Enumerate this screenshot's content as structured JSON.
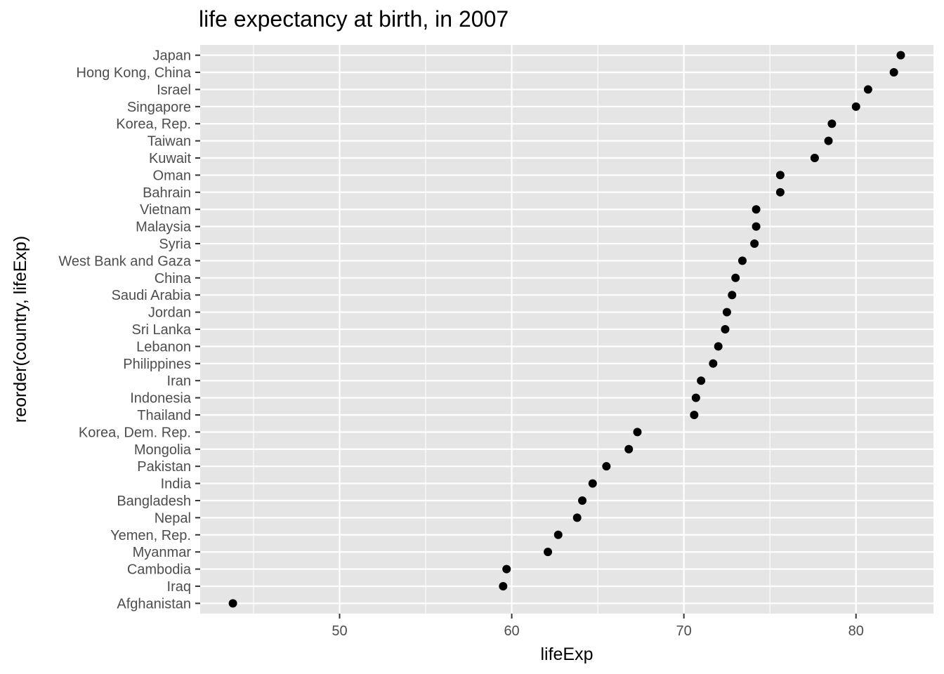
{
  "chart_data": {
    "type": "scatter",
    "title": "life expectancy at birth, in 2007",
    "xlabel": "lifeExp",
    "ylabel": "reorder(country, lifeExp)",
    "xlim": [
      41.9,
      84.5
    ],
    "xticks": [
      50,
      60,
      70,
      80
    ],
    "grid": true,
    "legend": "none",
    "point_color": "#000000",
    "panel_background": "#e5e5e5",
    "categories": [
      "Japan",
      "Hong Kong, China",
      "Israel",
      "Singapore",
      "Korea, Rep.",
      "Taiwan",
      "Kuwait",
      "Oman",
      "Bahrain",
      "Vietnam",
      "Malaysia",
      "Syria",
      "West Bank and Gaza",
      "China",
      "Saudi Arabia",
      "Jordan",
      "Sri Lanka",
      "Lebanon",
      "Philippines",
      "Iran",
      "Indonesia",
      "Thailand",
      "Korea, Dem. Rep.",
      "Mongolia",
      "Pakistan",
      "India",
      "Bangladesh",
      "Nepal",
      "Yemen, Rep.",
      "Myanmar",
      "Cambodia",
      "Iraq",
      "Afghanistan"
    ],
    "values": [
      82.6,
      82.2,
      80.7,
      80.0,
      78.6,
      78.4,
      77.6,
      75.6,
      75.6,
      74.2,
      74.2,
      74.1,
      73.4,
      73.0,
      72.8,
      72.5,
      72.4,
      72.0,
      71.7,
      71.0,
      70.7,
      70.6,
      67.3,
      66.8,
      65.5,
      64.7,
      64.1,
      63.8,
      62.7,
      62.1,
      59.7,
      59.5,
      43.8
    ]
  }
}
